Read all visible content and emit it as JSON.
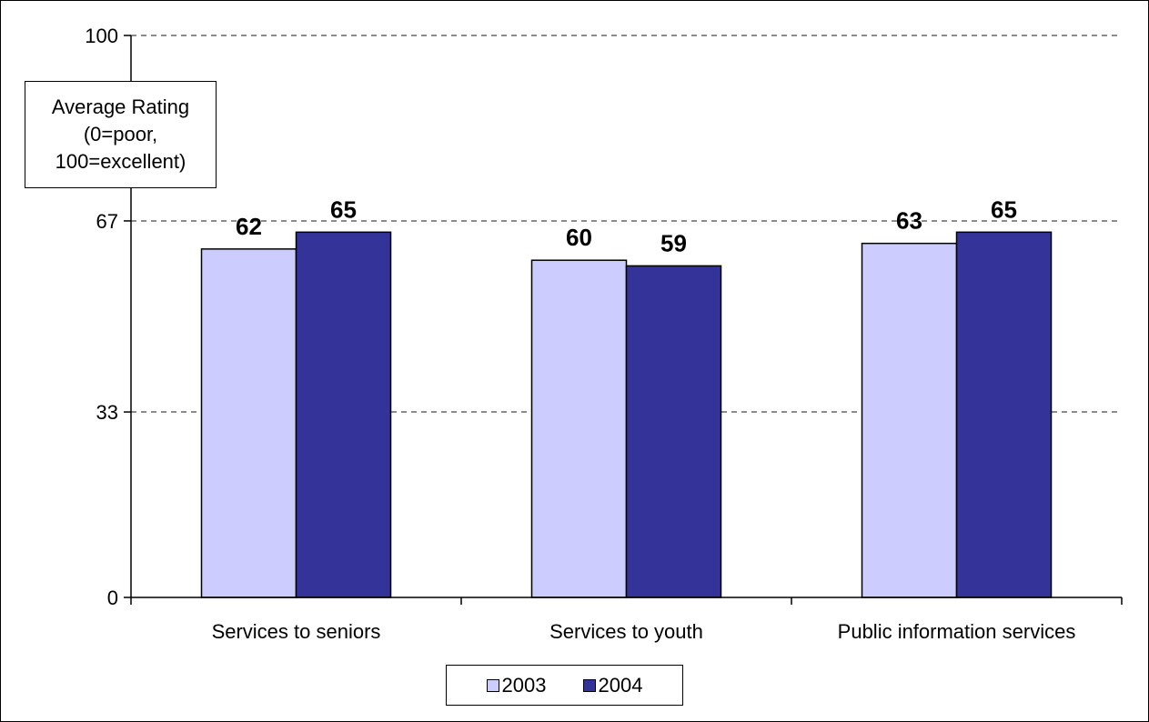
{
  "chart_data": {
    "type": "bar",
    "title": "",
    "ylabel": "Average Rating\n(0=poor,\n100=excellent)",
    "xlabel": "",
    "categories": [
      "Services to seniors",
      "Services to youth",
      "Public information services"
    ],
    "series": [
      {
        "name": "2003",
        "values": [
          62,
          60,
          63
        ],
        "color": "#ccccff"
      },
      {
        "name": "2004",
        "values": [
          65,
          59,
          65
        ],
        "color": "#333399"
      }
    ],
    "ylim": [
      0,
      100
    ],
    "yticks": [
      0,
      33,
      67,
      100
    ],
    "grid": true,
    "legend": "bottom",
    "data_labels": true
  }
}
